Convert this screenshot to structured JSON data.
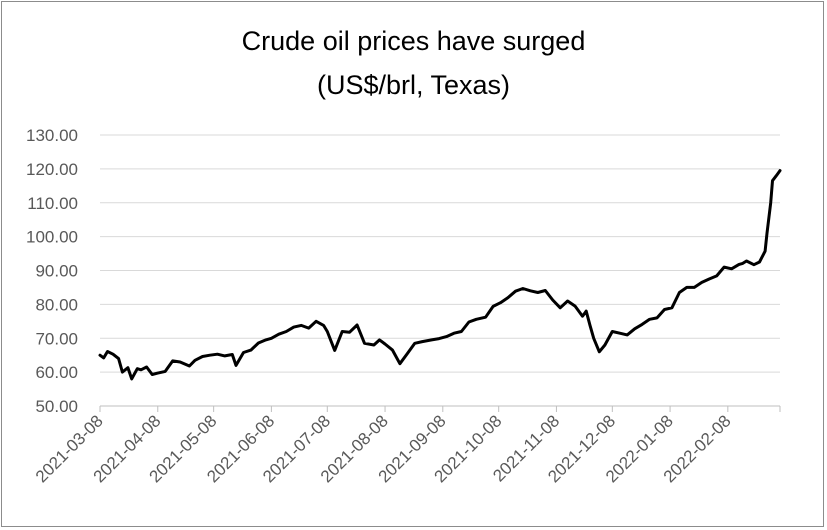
{
  "chart_data": {
    "type": "line",
    "title": "Crude oil prices have surged",
    "subtitle": "(US$/brl, Texas)",
    "xlabel": "",
    "ylabel": "",
    "ylim": [
      50,
      130
    ],
    "yticks": [
      "50.00",
      "60.00",
      "70.00",
      "80.00",
      "90.00",
      "100.00",
      "110.00",
      "120.00",
      "130.00"
    ],
    "xticks": [
      "2021-03-08",
      "2021-04-08",
      "2021-05-08",
      "2021-06-08",
      "2021-07-08",
      "2021-08-08",
      "2021-09-08",
      "2021-10-08",
      "2021-11-08",
      "2021-12-08",
      "2022-01-08",
      "2022-02-08"
    ],
    "x_start": "2021-03-08",
    "x_end": "2022-03-08",
    "grid": "horizontal",
    "line_color": "#000000",
    "series": [
      {
        "x": [
          "2021-03-08",
          "2021-03-10",
          "2021-03-12",
          "2021-03-15",
          "2021-03-18",
          "2021-03-20",
          "2021-03-23",
          "2021-03-25",
          "2021-03-28",
          "2021-03-30",
          "2021-04-02",
          "2021-04-05",
          "2021-04-08",
          "2021-04-12",
          "2021-04-16",
          "2021-04-20",
          "2021-04-25",
          "2021-04-28",
          "2021-05-02",
          "2021-05-06",
          "2021-05-10",
          "2021-05-14",
          "2021-05-18",
          "2021-05-20",
          "2021-05-24",
          "2021-05-28",
          "2021-06-01",
          "2021-06-05",
          "2021-06-08",
          "2021-06-12",
          "2021-06-16",
          "2021-06-20",
          "2021-06-24",
          "2021-06-28",
          "2021-07-02",
          "2021-07-06",
          "2021-07-08",
          "2021-07-12",
          "2021-07-16",
          "2021-07-20",
          "2021-07-24",
          "2021-07-28",
          "2021-08-02",
          "2021-08-05",
          "2021-08-08",
          "2021-08-12",
          "2021-08-16",
          "2021-08-20",
          "2021-08-24",
          "2021-08-28",
          "2021-09-02",
          "2021-09-06",
          "2021-09-10",
          "2021-09-14",
          "2021-09-18",
          "2021-09-22",
          "2021-09-26",
          "2021-10-01",
          "2021-10-05",
          "2021-10-09",
          "2021-10-13",
          "2021-10-17",
          "2021-10-21",
          "2021-10-25",
          "2021-10-29",
          "2021-11-02",
          "2021-11-06",
          "2021-11-10",
          "2021-11-14",
          "2021-11-18",
          "2021-11-22",
          "2021-11-24",
          "2021-11-26",
          "2021-11-28",
          "2021-12-01",
          "2021-12-04",
          "2021-12-08",
          "2021-12-12",
          "2021-12-16",
          "2021-12-20",
          "2021-12-24",
          "2021-12-28",
          "2022-01-01",
          "2022-01-05",
          "2022-01-09",
          "2022-01-13",
          "2022-01-17",
          "2022-01-21",
          "2022-01-25",
          "2022-01-29",
          "2022-02-02",
          "2022-02-06",
          "2022-02-10",
          "2022-02-14",
          "2022-02-16",
          "2022-02-18",
          "2022-02-22",
          "2022-02-25",
          "2022-02-28",
          "2022-03-01",
          "2022-03-03",
          "2022-03-04",
          "2022-03-06",
          "2022-03-08"
        ],
        "y": [
          65.0,
          64.2,
          66.1,
          65.3,
          64.0,
          60.0,
          61.3,
          58.0,
          61.0,
          60.7,
          61.5,
          59.3,
          59.7,
          60.2,
          63.3,
          63.0,
          61.8,
          63.5,
          64.6,
          65.0,
          65.3,
          64.8,
          65.2,
          62.0,
          65.8,
          66.5,
          68.6,
          69.5,
          70.0,
          71.2,
          72.0,
          73.3,
          73.8,
          73.0,
          75.0,
          73.8,
          72.0,
          66.4,
          72.0,
          71.8,
          73.9,
          68.5,
          68.0,
          69.5,
          68.3,
          66.5,
          62.5,
          65.5,
          68.5,
          69.0,
          69.5,
          69.9,
          70.5,
          71.5,
          72.0,
          74.8,
          75.6,
          76.2,
          79.4,
          80.5,
          82.0,
          83.9,
          84.7,
          84.0,
          83.5,
          84.1,
          81.3,
          79.0,
          81.0,
          79.5,
          76.5,
          78.0,
          73.8,
          70.0,
          66.0,
          68.0,
          72.0,
          71.5,
          71.0,
          72.8,
          74.1,
          75.6,
          76.0,
          78.5,
          79.0,
          83.5,
          85.0,
          85.0,
          86.5,
          87.5,
          88.4,
          91.0,
          90.5,
          91.8,
          92.1,
          92.8,
          91.7,
          92.5,
          95.7,
          101.0,
          110.0,
          116.5,
          118.0,
          119.5
        ]
      }
    ]
  }
}
